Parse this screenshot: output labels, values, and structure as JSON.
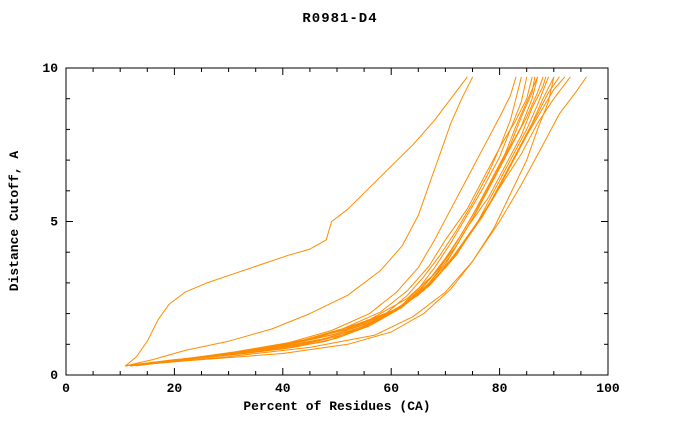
{
  "chart_data": {
    "type": "line",
    "title": "R0981-D4",
    "xlabel": "Percent of Residues (CA)",
    "ylabel": "Distance Cutoff, A",
    "xlim": [
      0,
      100
    ],
    "ylim": [
      0,
      10
    ],
    "xticks": [
      0,
      20,
      40,
      60,
      80,
      100
    ],
    "xminor_step": 5,
    "yticks": [
      0,
      5,
      10
    ],
    "yminor_step": 1,
    "grid": false,
    "legend": "none",
    "line_color": "#ff8c00",
    "axis_color": "#000000",
    "series": [
      [
        [
          11,
          0.3
        ],
        [
          13,
          0.6
        ],
        [
          15,
          1.1
        ],
        [
          17,
          1.8
        ],
        [
          19,
          2.3
        ],
        [
          22,
          2.7
        ],
        [
          26,
          3.0
        ],
        [
          31,
          3.3
        ],
        [
          36,
          3.6
        ],
        [
          41,
          3.9
        ],
        [
          45,
          4.1
        ],
        [
          48,
          4.4
        ],
        [
          49,
          5.0
        ],
        [
          52,
          5.4
        ],
        [
          56,
          6.1
        ],
        [
          60,
          6.8
        ],
        [
          64,
          7.5
        ],
        [
          68,
          8.3
        ],
        [
          71,
          9.0
        ],
        [
          74,
          9.7
        ]
      ],
      [
        [
          11,
          0.3
        ],
        [
          16,
          0.5
        ],
        [
          22,
          0.8
        ],
        [
          30,
          1.1
        ],
        [
          38,
          1.5
        ],
        [
          45,
          2.0
        ],
        [
          52,
          2.6
        ],
        [
          58,
          3.4
        ],
        [
          62,
          4.2
        ],
        [
          65,
          5.2
        ],
        [
          67,
          6.2
        ],
        [
          69,
          7.2
        ],
        [
          71,
          8.2
        ],
        [
          73,
          9.0
        ],
        [
          75,
          9.7
        ]
      ],
      [
        [
          11,
          0.3
        ],
        [
          21,
          0.5
        ],
        [
          31,
          0.75
        ],
        [
          41,
          1.05
        ],
        [
          49,
          1.45
        ],
        [
          56,
          2.0
        ],
        [
          61,
          2.7
        ],
        [
          65,
          3.5
        ],
        [
          68,
          4.4
        ],
        [
          71,
          5.4
        ],
        [
          74,
          6.4
        ],
        [
          77,
          7.4
        ],
        [
          80,
          8.4
        ],
        [
          82,
          9.1
        ],
        [
          83,
          9.7
        ]
      ],
      [
        [
          11,
          0.3
        ],
        [
          20,
          0.5
        ],
        [
          30,
          0.65
        ],
        [
          40,
          0.85
        ],
        [
          48,
          1.1
        ],
        [
          54,
          1.5
        ],
        [
          59,
          2.0
        ],
        [
          63,
          2.6
        ],
        [
          66,
          3.2
        ],
        [
          69,
          3.9
        ],
        [
          72,
          4.7
        ],
        [
          75,
          5.6
        ],
        [
          78,
          6.6
        ],
        [
          80,
          7.4
        ],
        [
          82,
          8.3
        ],
        [
          83,
          9.0
        ],
        [
          84,
          9.7
        ]
      ],
      [
        [
          12,
          0.3
        ],
        [
          22,
          0.5
        ],
        [
          33,
          0.7
        ],
        [
          42,
          0.9
        ],
        [
          50,
          1.2
        ],
        [
          56,
          1.6
        ],
        [
          61,
          2.1
        ],
        [
          65,
          2.8
        ],
        [
          68,
          3.5
        ],
        [
          71,
          4.3
        ],
        [
          74,
          5.2
        ],
        [
          77,
          6.1
        ],
        [
          80,
          7.1
        ],
        [
          82,
          8.0
        ],
        [
          84,
          8.9
        ],
        [
          85,
          9.7
        ]
      ],
      [
        [
          11,
          0.3
        ],
        [
          24,
          0.55
        ],
        [
          35,
          0.75
        ],
        [
          44,
          1.0
        ],
        [
          52,
          1.35
        ],
        [
          58,
          1.8
        ],
        [
          63,
          2.4
        ],
        [
          67,
          3.1
        ],
        [
          70,
          3.8
        ],
        [
          73,
          4.6
        ],
        [
          76,
          5.5
        ],
        [
          79,
          6.5
        ],
        [
          82,
          7.5
        ],
        [
          84,
          8.4
        ],
        [
          86,
          9.2
        ],
        [
          86.5,
          9.7
        ]
      ],
      [
        [
          13,
          0.35
        ],
        [
          23,
          0.55
        ],
        [
          34,
          0.8
        ],
        [
          43,
          1.1
        ],
        [
          51,
          1.5
        ],
        [
          58,
          2.05
        ],
        [
          63,
          2.75
        ],
        [
          67,
          3.55
        ],
        [
          70,
          4.4
        ],
        [
          74,
          5.4
        ],
        [
          77,
          6.4
        ],
        [
          80,
          7.4
        ],
        [
          83,
          8.3
        ],
        [
          85,
          9.0
        ],
        [
          86,
          9.7
        ]
      ],
      [
        [
          12,
          0.3
        ],
        [
          25,
          0.55
        ],
        [
          37,
          0.8
        ],
        [
          46,
          1.1
        ],
        [
          54,
          1.5
        ],
        [
          60,
          2.0
        ],
        [
          65,
          2.7
        ],
        [
          69,
          3.5
        ],
        [
          72,
          4.3
        ],
        [
          75,
          5.2
        ],
        [
          78,
          6.2
        ],
        [
          81,
          7.2
        ],
        [
          83,
          8.1
        ],
        [
          85,
          8.9
        ],
        [
          87,
          9.7
        ]
      ],
      [
        [
          12,
          0.3
        ],
        [
          35,
          0.8
        ],
        [
          47,
          1.25
        ],
        [
          56,
          1.8
        ],
        [
          63,
          2.5
        ],
        [
          68,
          3.3
        ],
        [
          72,
          4.2
        ],
        [
          75,
          5.1
        ],
        [
          78,
          6.1
        ],
        [
          81,
          7.1
        ],
        [
          84,
          8.1
        ],
        [
          86,
          9.0
        ],
        [
          87,
          9.7
        ]
      ],
      [
        [
          13,
          0.3
        ],
        [
          26,
          0.6
        ],
        [
          38,
          0.85
        ],
        [
          47,
          1.15
        ],
        [
          55,
          1.55
        ],
        [
          61,
          2.1
        ],
        [
          66,
          2.8
        ],
        [
          70,
          3.6
        ],
        [
          73,
          4.5
        ],
        [
          76,
          5.4
        ],
        [
          79,
          6.4
        ],
        [
          82,
          7.4
        ],
        [
          85,
          8.4
        ],
        [
          87,
          9.2
        ],
        [
          88,
          9.7
        ]
      ],
      [
        [
          12,
          0.3
        ],
        [
          27,
          0.6
        ],
        [
          39,
          0.9
        ],
        [
          48,
          1.2
        ],
        [
          56,
          1.65
        ],
        [
          62,
          2.2
        ],
        [
          67,
          3.0
        ],
        [
          71,
          3.9
        ],
        [
          74,
          4.8
        ],
        [
          78,
          5.8
        ],
        [
          81,
          6.8
        ],
        [
          84,
          7.8
        ],
        [
          86,
          8.7
        ],
        [
          88,
          9.4
        ],
        [
          88.5,
          9.7
        ]
      ],
      [
        [
          11,
          0.3
        ],
        [
          28,
          0.65
        ],
        [
          40,
          0.95
        ],
        [
          49,
          1.3
        ],
        [
          57,
          1.75
        ],
        [
          63,
          2.35
        ],
        [
          68,
          3.1
        ],
        [
          72,
          4.0
        ],
        [
          76,
          5.0
        ],
        [
          79,
          6.0
        ],
        [
          82,
          7.0
        ],
        [
          85,
          8.0
        ],
        [
          87,
          8.8
        ],
        [
          89,
          9.7
        ]
      ],
      [
        [
          12,
          0.3
        ],
        [
          29,
          0.65
        ],
        [
          41,
          1.0
        ],
        [
          50,
          1.35
        ],
        [
          58,
          1.85
        ],
        [
          64,
          2.5
        ],
        [
          69,
          3.3
        ],
        [
          73,
          4.2
        ],
        [
          77,
          5.2
        ],
        [
          80,
          6.2
        ],
        [
          83,
          7.2
        ],
        [
          86,
          8.2
        ],
        [
          88,
          9.0
        ],
        [
          90,
          9.7
        ]
      ],
      [
        [
          11,
          0.3
        ],
        [
          25,
          0.5
        ],
        [
          40,
          0.7
        ],
        [
          52,
          1.0
        ],
        [
          60,
          1.4
        ],
        [
          66,
          2.0
        ],
        [
          71,
          2.8
        ],
        [
          75,
          3.7
        ],
        [
          79,
          4.8
        ],
        [
          82,
          5.9
        ],
        [
          85,
          7.0
        ],
        [
          87,
          8.0
        ],
        [
          89,
          8.9
        ],
        [
          90,
          9.7
        ]
      ],
      [
        [
          13,
          0.3
        ],
        [
          30,
          0.7
        ],
        [
          42,
          1.05
        ],
        [
          51,
          1.45
        ],
        [
          59,
          1.95
        ],
        [
          65,
          2.6
        ],
        [
          70,
          3.5
        ],
        [
          74,
          4.5
        ],
        [
          78,
          5.5
        ],
        [
          81,
          6.5
        ],
        [
          84,
          7.5
        ],
        [
          87,
          8.5
        ],
        [
          89,
          9.2
        ],
        [
          91,
          9.7
        ]
      ],
      [
        [
          12,
          0.3
        ],
        [
          31,
          0.7
        ],
        [
          43,
          1.1
        ],
        [
          52,
          1.5
        ],
        [
          60,
          2.05
        ],
        [
          66,
          2.75
        ],
        [
          71,
          3.7
        ],
        [
          75,
          4.7
        ],
        [
          79,
          5.8
        ],
        [
          82,
          6.8
        ],
        [
          85,
          7.8
        ],
        [
          88,
          8.7
        ],
        [
          90,
          9.3
        ],
        [
          92,
          9.7
        ]
      ],
      [
        [
          11,
          0.3
        ],
        [
          32,
          0.75
        ],
        [
          44,
          1.15
        ],
        [
          53,
          1.6
        ],
        [
          61,
          2.15
        ],
        [
          67,
          2.9
        ],
        [
          72,
          3.9
        ],
        [
          76,
          5.0
        ],
        [
          80,
          6.1
        ],
        [
          84,
          7.2
        ],
        [
          87,
          8.2
        ],
        [
          90,
          9.0
        ],
        [
          93,
          9.7
        ]
      ],
      [
        [
          12,
          0.3
        ],
        [
          30,
          0.6
        ],
        [
          45,
          0.9
        ],
        [
          57,
          1.3
        ],
        [
          64,
          1.9
        ],
        [
          70,
          2.7
        ],
        [
          75,
          3.7
        ],
        [
          80,
          5.0
        ],
        [
          84,
          6.2
        ],
        [
          88,
          7.5
        ],
        [
          91,
          8.5
        ],
        [
          94,
          9.2
        ],
        [
          96,
          9.7
        ]
      ]
    ]
  }
}
